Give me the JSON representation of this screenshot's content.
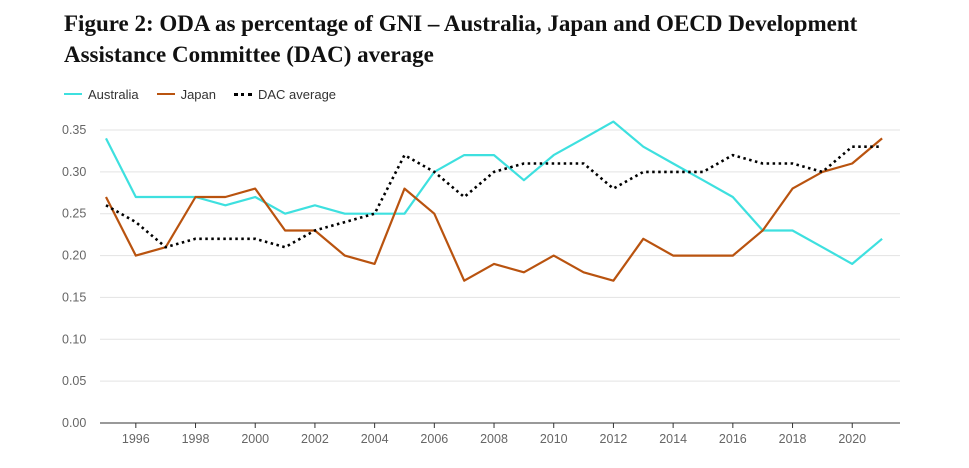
{
  "title": "Figure 2: ODA as percentage of GNI – Australia, Japan and OECD Development Assistance Committee (DAC) average",
  "legend": [
    {
      "label": "Australia",
      "color": "#3ee0df",
      "style": "solid"
    },
    {
      "label": "Japan",
      "color": "#b9530f",
      "style": "solid"
    },
    {
      "label": "DAC average",
      "color": "#000000",
      "style": "dotted"
    }
  ],
  "chart_data": {
    "type": "line",
    "title": "Figure 2: ODA as percentage of GNI – Australia, Japan and OECD Development Assistance Committee (DAC) average",
    "xlabel": "",
    "ylabel": "",
    "x": [
      1995,
      1996,
      1997,
      1998,
      1999,
      2000,
      2001,
      2002,
      2003,
      2004,
      2005,
      2006,
      2007,
      2008,
      2009,
      2010,
      2011,
      2012,
      2013,
      2014,
      2015,
      2016,
      2017,
      2018,
      2019,
      2020,
      2021
    ],
    "xlim": [
      1994.8,
      2021.6
    ],
    "ylim": [
      0,
      0.35
    ],
    "x_ticks": [
      "1996",
      "1998",
      "2000",
      "2002",
      "2004",
      "2006",
      "2008",
      "2010",
      "2012",
      "2014",
      "2016",
      "2018",
      "2020"
    ],
    "y_ticks": [
      "0.00",
      "0.05",
      "0.10",
      "0.15",
      "0.20",
      "0.25",
      "0.30",
      "0.35"
    ],
    "grid": true,
    "legend_position": "top-left",
    "series": [
      {
        "name": "Australia",
        "color": "#3ee0df",
        "dash": "solid",
        "values": [
          0.34,
          0.27,
          0.27,
          0.27,
          0.26,
          0.27,
          0.25,
          0.26,
          0.25,
          0.25,
          0.25,
          0.3,
          0.32,
          0.32,
          0.29,
          0.32,
          0.34,
          0.36,
          0.33,
          0.31,
          0.29,
          0.27,
          0.23,
          0.23,
          0.21,
          0.19,
          0.22
        ]
      },
      {
        "name": "Japan",
        "color": "#b9530f",
        "dash": "solid",
        "values": [
          0.27,
          0.2,
          0.21,
          0.27,
          0.27,
          0.28,
          0.23,
          0.23,
          0.2,
          0.19,
          0.28,
          0.25,
          0.17,
          0.19,
          0.18,
          0.2,
          0.18,
          0.17,
          0.22,
          0.2,
          0.2,
          0.2,
          0.23,
          0.28,
          0.3,
          0.31,
          0.34
        ]
      },
      {
        "name": "DAC average",
        "color": "#000000",
        "dash": "dotted",
        "values": [
          0.26,
          0.24,
          0.21,
          0.22,
          0.22,
          0.22,
          0.21,
          0.23,
          0.24,
          0.25,
          0.32,
          0.3,
          0.27,
          0.3,
          0.31,
          0.31,
          0.31,
          0.28,
          0.3,
          0.3,
          0.3,
          0.32,
          0.31,
          0.31,
          0.3,
          0.33,
          0.33
        ]
      }
    ]
  }
}
